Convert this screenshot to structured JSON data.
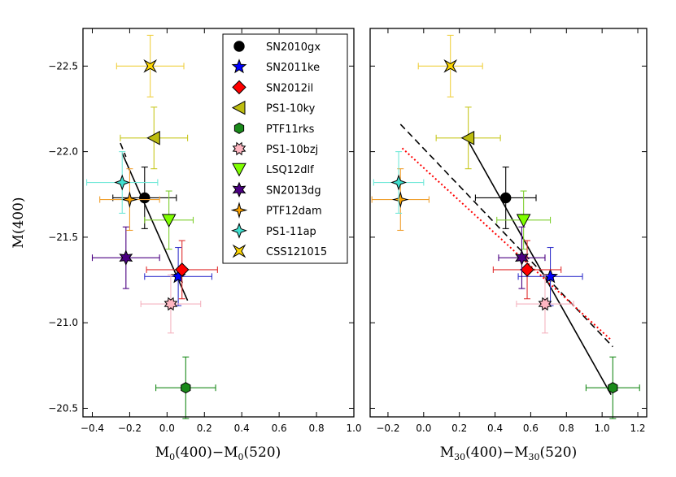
{
  "chart_data": [
    {
      "type": "scatter",
      "panel": "left",
      "xlabel": "M0(400)−M0(520)",
      "xlabel_parts": {
        "a": "M",
        "a_sub": "0",
        "b": "(400)−M",
        "b_sub": "0",
        "c": "(520)"
      },
      "ylabel": "M(400)",
      "xlim": [
        -0.45,
        1.0
      ],
      "ylim": [
        -20.45,
        -22.72
      ],
      "xticks": [
        -0.4,
        -0.2,
        0.0,
        0.2,
        0.4,
        0.6,
        0.8,
        1.0
      ],
      "xtick_labels": [
        "−0.4",
        "−0.2",
        "0.0",
        "0.2",
        "0.4",
        "0.6",
        "0.8",
        "1.0"
      ],
      "yticks": [
        -20.5,
        -21.0,
        -21.5,
        -22.0,
        -22.5
      ],
      "ytick_labels": [
        "−20.5",
        "−21.0",
        "−21.5",
        "−22.0",
        "−22.5"
      ],
      "points": [
        {
          "name": "SN2010gx",
          "x": -0.12,
          "y": -21.73,
          "xerr": 0.17,
          "yerr": 0.18
        },
        {
          "name": "SN2011ke",
          "x": 0.06,
          "y": -21.27,
          "xerr": 0.18,
          "yerr": 0.17
        },
        {
          "name": "SN2012il",
          "x": 0.08,
          "y": -21.31,
          "xerr": 0.19,
          "yerr": 0.17
        },
        {
          "name": "PS1-10ky",
          "x": -0.07,
          "y": -22.08,
          "xerr": 0.18,
          "yerr": 0.18
        },
        {
          "name": "PTF11rks",
          "x": 0.1,
          "y": -20.62,
          "xerr": 0.16,
          "yerr": 0.18
        },
        {
          "name": "PS1-10bzj",
          "x": 0.02,
          "y": -21.11,
          "xerr": 0.16,
          "yerr": 0.17
        },
        {
          "name": "LSQ12dlf",
          "x": 0.01,
          "y": -21.6,
          "xerr": 0.13,
          "yerr": 0.17
        },
        {
          "name": "SN2013dg",
          "x": -0.22,
          "y": -21.38,
          "xerr": 0.18,
          "yerr": 0.18
        },
        {
          "name": "PTF12dam",
          "x": -0.2,
          "y": -21.72,
          "xerr": 0.16,
          "yerr": 0.18
        },
        {
          "name": "PS1-11ap",
          "x": -0.24,
          "y": -21.82,
          "xerr": 0.19,
          "yerr": 0.18
        },
        {
          "name": "CSS121015",
          "x": -0.09,
          "y": -22.5,
          "xerr": 0.18,
          "yerr": 0.18
        }
      ],
      "fits": [
        {
          "style": "solid",
          "color": "#000000",
          "x": [
            -0.24,
            0.11
          ],
          "y": [
            -21.99,
            -21.13
          ]
        },
        {
          "style": "dashed",
          "color": "#000000",
          "x": [
            -0.25,
            -0.22
          ],
          "y": [
            -22.05,
            -21.97
          ]
        }
      ]
    },
    {
      "type": "scatter",
      "panel": "right",
      "xlabel": "M30(400)−M30(520)",
      "xlabel_parts": {
        "a": "M",
        "a_sub": "30",
        "b": "(400)−M",
        "b_sub": "30",
        "c": "(520)"
      },
      "ylabel": "",
      "xlim": [
        -0.3,
        1.25
      ],
      "ylim": [
        -20.45,
        -22.72
      ],
      "xticks": [
        -0.2,
        0.0,
        0.2,
        0.4,
        0.6,
        0.8,
        1.0,
        1.2
      ],
      "xtick_labels": [
        "−0.2",
        "0.0",
        "0.2",
        "0.4",
        "0.6",
        "0.8",
        "1.0",
        "1.2"
      ],
      "yticks": [
        -20.5,
        -21.0,
        -21.5,
        -22.0,
        -22.5
      ],
      "points": [
        {
          "name": "SN2010gx",
          "x": 0.46,
          "y": -21.73,
          "xerr": 0.17,
          "yerr": 0.18
        },
        {
          "name": "SN2011ke",
          "x": 0.71,
          "y": -21.27,
          "xerr": 0.18,
          "yerr": 0.17
        },
        {
          "name": "SN2012il",
          "x": 0.58,
          "y": -21.31,
          "xerr": 0.19,
          "yerr": 0.17
        },
        {
          "name": "PS1-10ky",
          "x": 0.25,
          "y": -22.08,
          "xerr": 0.18,
          "yerr": 0.18
        },
        {
          "name": "PTF11rks",
          "x": 1.06,
          "y": -20.62,
          "xerr": 0.15,
          "yerr": 0.18
        },
        {
          "name": "PS1-10bzj",
          "x": 0.68,
          "y": -21.11,
          "xerr": 0.16,
          "yerr": 0.17
        },
        {
          "name": "LSQ12dlf",
          "x": 0.56,
          "y": -21.6,
          "xerr": 0.15,
          "yerr": 0.17
        },
        {
          "name": "SN2013dg",
          "x": 0.55,
          "y": -21.38,
          "xerr": 0.13,
          "yerr": 0.18
        },
        {
          "name": "PTF12dam",
          "x": -0.13,
          "y": -21.72,
          "xerr": 0.16,
          "yerr": 0.18
        },
        {
          "name": "PS1-11ap",
          "x": -0.14,
          "y": -21.82,
          "xerr": 0.14,
          "yerr": 0.18
        },
        {
          "name": "CSS121015",
          "x": 0.15,
          "y": -22.5,
          "xerr": 0.18,
          "yerr": 0.18
        }
      ],
      "fits": [
        {
          "style": "solid",
          "color": "#000000",
          "x": [
            0.24,
            1.05
          ],
          "y": [
            -22.08,
            -20.58
          ]
        },
        {
          "style": "dashed",
          "color": "#000000",
          "x": [
            -0.13,
            1.06
          ],
          "y": [
            -22.16,
            -20.86
          ]
        },
        {
          "style": "dotted",
          "color": "#ff0000",
          "x": [
            -0.12,
            1.05
          ],
          "y": [
            -22.02,
            -20.9
          ]
        }
      ]
    }
  ],
  "legend": {
    "placement": "top-right of left panel",
    "entries": [
      {
        "name": "SN2010gx",
        "marker": "circle",
        "color": "#000000",
        "errcolor": "#000000"
      },
      {
        "name": "SN2011ke",
        "marker": "star5",
        "color": "#0000ff",
        "errcolor": "#3333cc"
      },
      {
        "name": "SN2012il",
        "marker": "diamond",
        "color": "#ff0000",
        "errcolor": "#e03030"
      },
      {
        "name": "PS1-10ky",
        "marker": "triangle-left",
        "color": "#bdbd10",
        "errcolor": "#c8c820"
      },
      {
        "name": "PTF11rks",
        "marker": "hexagon",
        "color": "#1a8a1a",
        "errcolor": "#1a8a1a"
      },
      {
        "name": "PS1-10bzj",
        "marker": "star8",
        "color": "#ffb6c1",
        "errcolor": "#f4b4c0"
      },
      {
        "name": "LSQ12dlf",
        "marker": "triangle-down",
        "color": "#7fff00",
        "errcolor": "#7fcf30"
      },
      {
        "name": "SN2013dg",
        "marker": "star6",
        "color": "#4b0082",
        "errcolor": "#4b0082"
      },
      {
        "name": "PTF12dam",
        "marker": "diamond-thin",
        "color": "#ffa500",
        "errcolor": "#f0a030"
      },
      {
        "name": "PS1-11ap",
        "marker": "diamond-4",
        "color": "#40e0d0",
        "errcolor": "#70e8d8"
      },
      {
        "name": "CSS121015",
        "marker": "bowtie",
        "color": "#ffd700",
        "errcolor": "#f0d040"
      }
    ]
  }
}
